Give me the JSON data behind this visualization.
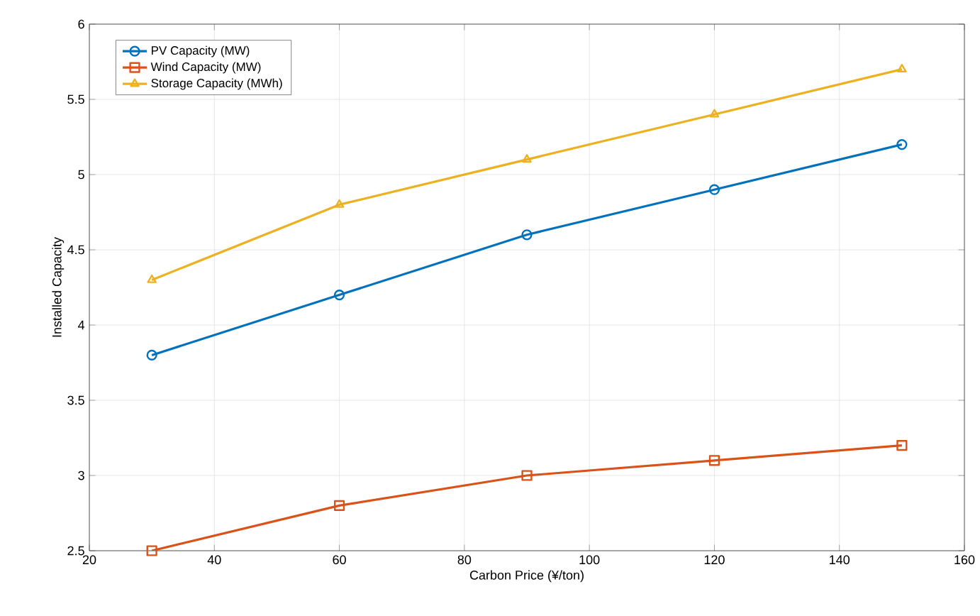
{
  "chart_data": {
    "type": "line",
    "xlabel": "Carbon Price (¥/ton)",
    "ylabel": "Installed Capacity",
    "x": [
      30,
      60,
      90,
      120,
      150
    ],
    "series": [
      {
        "name": "PV Capacity (MW)",
        "color": "#0072bd",
        "marker": "circle",
        "values": [
          3.8,
          4.2,
          4.6,
          4.9,
          5.2
        ]
      },
      {
        "name": "Wind Capacity (MW)",
        "color": "#d95319",
        "marker": "square",
        "values": [
          2.5,
          2.8,
          3.0,
          3.1,
          3.2
        ]
      },
      {
        "name": "Storage Capacity (MWh)",
        "color": "#edb120",
        "marker": "triangle",
        "values": [
          4.3,
          4.8,
          5.1,
          5.4,
          5.7
        ]
      }
    ],
    "xlim": [
      20,
      160
    ],
    "ylim": [
      2.5,
      6
    ],
    "xticks": [
      20,
      40,
      60,
      80,
      100,
      120,
      140,
      160
    ],
    "yticks": [
      2.5,
      3,
      3.5,
      4,
      4.5,
      5,
      5.5,
      6
    ],
    "grid": true,
    "legend": "top left",
    "line_style": "solid"
  }
}
